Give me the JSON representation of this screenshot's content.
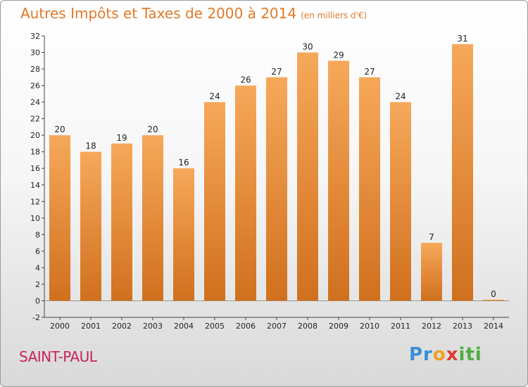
{
  "title": "Autres Impôts et Taxes de 2000 à 2014",
  "subtitle": "(en milliers d'€)",
  "location": "SAINT-PAUL",
  "logo": {
    "p1": "Pr",
    "p2": "o",
    "p3": "x",
    "p4": "iti"
  },
  "colors": {
    "bar_top": "#f7a85a",
    "bar_bottom": "#d0701e",
    "title": "#e07a2a",
    "location": "#c8235a"
  },
  "chart_data": {
    "type": "bar",
    "categories": [
      "2000",
      "2001",
      "2002",
      "2003",
      "2004",
      "2005",
      "2006",
      "2007",
      "2008",
      "2009",
      "2010",
      "2011",
      "2012",
      "2013",
      "2014"
    ],
    "values": [
      20,
      18,
      19,
      20,
      16,
      24,
      26,
      27,
      30,
      29,
      27,
      24,
      7,
      31,
      0
    ],
    "ylim": [
      -2,
      32
    ],
    "yticks": [
      -2,
      0,
      2,
      4,
      6,
      8,
      10,
      12,
      14,
      16,
      18,
      20,
      22,
      24,
      26,
      28,
      30,
      32
    ],
    "grid": false
  }
}
